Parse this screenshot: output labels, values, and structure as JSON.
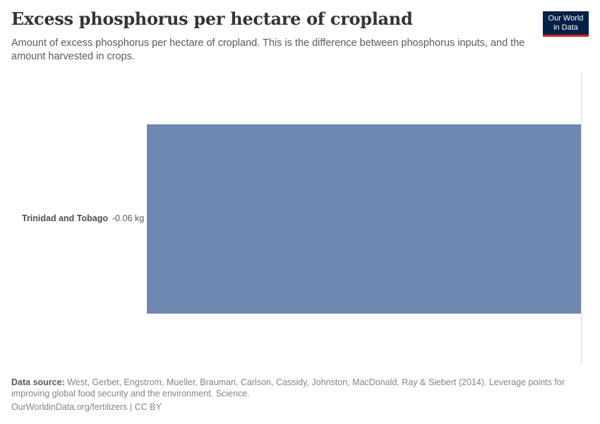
{
  "header": {
    "title": "Excess phosphorus per hectare of cropland",
    "subtitle": "Amount of excess phosphorus per hectare of cropland. This is the difference between phosphorus inputs, and the amount harvested in crops.",
    "logo_line1": "Our World",
    "logo_line2": "in Data"
  },
  "colors": {
    "bar": "#6d87b0",
    "logo_bg": "#002147",
    "logo_accent": "#ce261e",
    "title": "#333333"
  },
  "chart_data": {
    "type": "bar",
    "orientation": "horizontal",
    "title": "Excess phosphorus per hectare of cropland",
    "subtitle": "Amount of excess phosphorus per hectare of cropland. This is the difference between phosphorus inputs, and the amount harvested in crops.",
    "categories": [
      "Trinidad and Tobago"
    ],
    "values": [
      -0.06
    ],
    "value_labels": [
      "-0.06 kg"
    ],
    "unit": "kg",
    "xlabel": "",
    "ylabel": "",
    "xlim": [
      -0.06,
      0
    ],
    "grid": false,
    "legend": null
  },
  "rows": [
    {
      "name": "Trinidad and Tobago",
      "value_label": "-0.06 kg"
    }
  ],
  "footer": {
    "source_label": "Data source:",
    "source_text": " West, Gerber, Engstrom, Mueller, Brauman, Carlson, Cassidy, Johnston, MacDonald, Ray & Siebert (2014). Leverage points for improving global food security and the environment. Science.",
    "url": "OurWorldinData.org/fertilizers",
    "separator": " | ",
    "license": "CC BY"
  }
}
